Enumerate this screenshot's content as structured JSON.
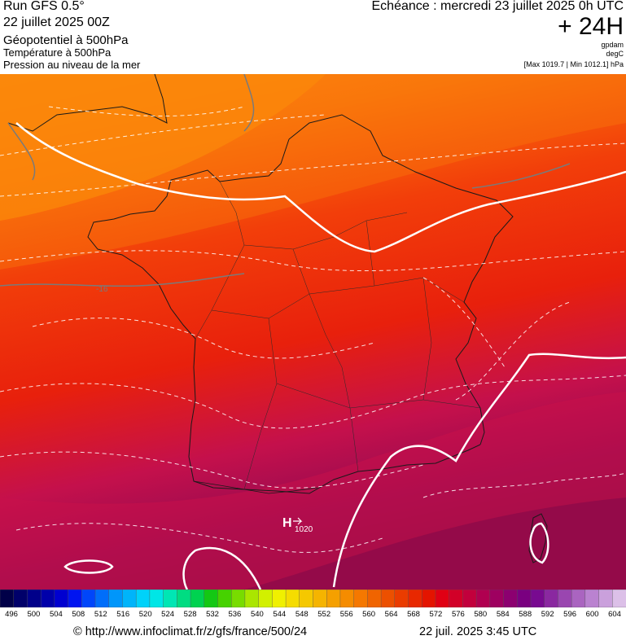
{
  "header": {
    "run": "Run GFS 0.5°",
    "date": "22 juillet 2025 00Z",
    "layer1": "Géopotentiel à 500hPa",
    "layer2": "Température à 500hPa",
    "layer3": "Pression au niveau de la mer",
    "echeance": "Echéance : mercredi 23 juillet 2025 0h UTC",
    "offset": "+ 24H",
    "unit1": "gpdam",
    "unit2": "degC",
    "range": "[Max 1019.7 | Min 1012.1] hPa"
  },
  "map": {
    "isotherm_label": "-16",
    "pressure_center_symbol": "H",
    "pressure_center_value": "1020",
    "colors": {
      "orange": "#fe9a0a",
      "red": "#f0250a",
      "crimson": "#c8104a",
      "purple": "#8a0a4a"
    }
  },
  "colorbar": {
    "unit": "gpdam",
    "ticks": [
      "496",
      "500",
      "504",
      "508",
      "512",
      "516",
      "520",
      "524",
      "528",
      "532",
      "536",
      "540",
      "544",
      "548",
      "552",
      "556",
      "560",
      "564",
      "568",
      "572",
      "576",
      "580",
      "584",
      "588",
      "592",
      "596",
      "600",
      "604"
    ],
    "colors": [
      "#000048",
      "#00006a",
      "#00008a",
      "#0000aa",
      "#0000d0",
      "#0014f0",
      "#0046fa",
      "#006efa",
      "#0096fa",
      "#00b4fa",
      "#00d2fa",
      "#00e6e6",
      "#00e6b4",
      "#00dc82",
      "#00d250",
      "#14c814",
      "#46d200",
      "#78dc00",
      "#aae600",
      "#d2f000",
      "#f0f000",
      "#f5dc00",
      "#f5c800",
      "#f5b400",
      "#f5a000",
      "#f58c00",
      "#f57800",
      "#f06400",
      "#ec5000",
      "#ea3c00",
      "#e82800",
      "#e41400",
      "#e00014",
      "#d20028",
      "#c2003c",
      "#b00050",
      "#9e0060",
      "#8c0070",
      "#7a0080",
      "#780a90",
      "#8a28a0",
      "#9a46b0",
      "#aa64c0",
      "#ba82d0",
      "#caa0dc",
      "#dcc0e8"
    ]
  },
  "footer": {
    "credit": "© http://www.infoclimat.fr/z/gfs/france/500/24",
    "timestamp": "22 juil. 2025  3:45 UTC"
  }
}
